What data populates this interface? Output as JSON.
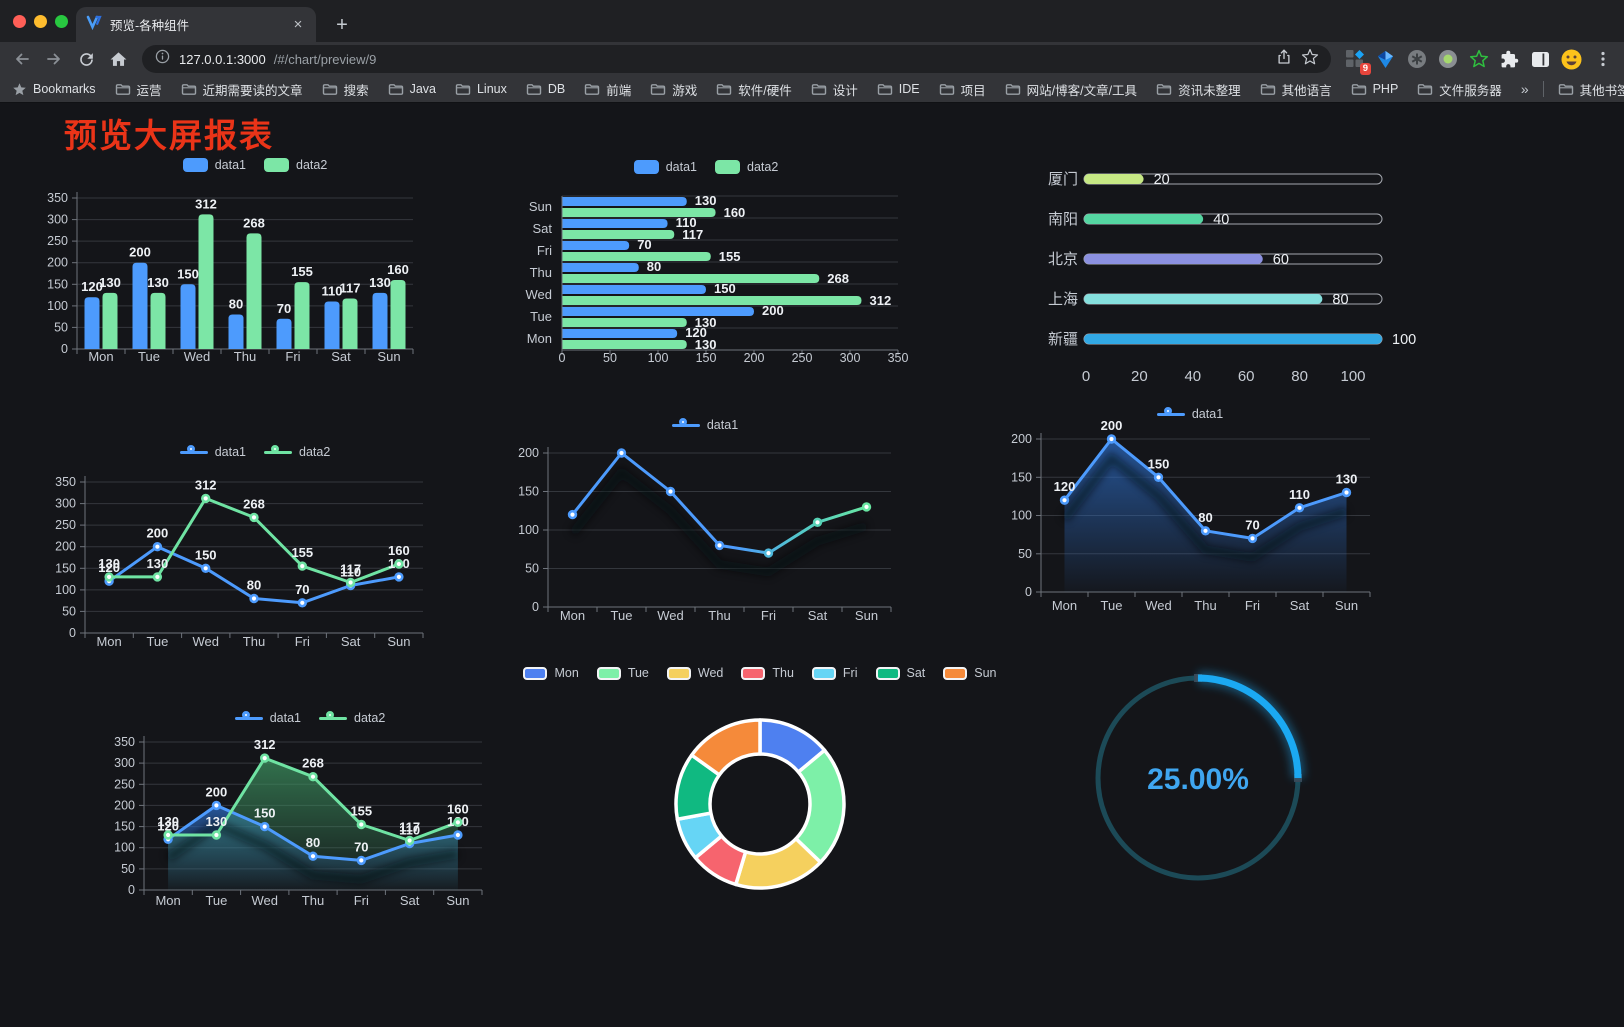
{
  "browser": {
    "tab": {
      "title": "预览-各种组件",
      "close": "×"
    },
    "new_tab": "+",
    "url": {
      "host": "127.0.0.1:3000",
      "path": "/#/chart/preview/9"
    },
    "extension_badge": "9",
    "bookmarks_bar": {
      "root_label": "Bookmarks",
      "folders": [
        "运营",
        "近期需要读的文章",
        "搜索",
        "Java",
        "Linux",
        "DB",
        "前端",
        "游戏",
        "软件/硬件",
        "设计",
        "IDE",
        "项目",
        "网站/博客/文章/工具",
        "资讯未整理",
        "其他语言",
        "PHP",
        "文件服务器"
      ],
      "overflow": "»",
      "other": "其他书签"
    }
  },
  "page": {
    "title": "预览大屏报表",
    "title_color": "#ea3418",
    "background": "#141519"
  },
  "chart_data": [
    {
      "id": "c1",
      "type": "bar",
      "title": "",
      "categories": [
        "Mon",
        "Tue",
        "Wed",
        "Thu",
        "Fri",
        "Sat",
        "Sun"
      ],
      "series": [
        {
          "name": "data1",
          "color": "#4d9bfd",
          "values": [
            120,
            200,
            150,
            80,
            70,
            110,
            130
          ]
        },
        {
          "name": "data2",
          "color": "#7ce6a6",
          "values": [
            130,
            130,
            312,
            268,
            155,
            117,
            160
          ]
        }
      ],
      "ylim": [
        0,
        350
      ],
      "ytick_step": 50,
      "value_labels": true,
      "legend_position": "top",
      "grid": true
    },
    {
      "id": "c2",
      "type": "bar",
      "orientation": "horizontal",
      "categories": [
        "Mon",
        "Tue",
        "Wed",
        "Thu",
        "Fri",
        "Sat",
        "Sun"
      ],
      "display_order_top_to_bottom": [
        "Sun",
        "Sat",
        "Fri",
        "Thu",
        "Wed",
        "Tue",
        "Mon"
      ],
      "series": [
        {
          "name": "data1",
          "color": "#4d9bfd",
          "values": [
            120,
            200,
            150,
            80,
            70,
            110,
            130
          ]
        },
        {
          "name": "data2",
          "color": "#7ce6a6",
          "values": [
            130,
            130,
            312,
            268,
            155,
            117,
            160
          ]
        }
      ],
      "xlim": [
        0,
        350
      ],
      "xtick_step": 50,
      "value_labels": true,
      "legend_position": "top",
      "grid": true
    },
    {
      "id": "c3",
      "type": "bar",
      "subtype": "progress",
      "rows": [
        {
          "label": "厦门",
          "value": 20,
          "color": "#c6e884"
        },
        {
          "label": "南阳",
          "value": 40,
          "color": "#55d6a2"
        },
        {
          "label": "北京",
          "value": 60,
          "color": "#8b90e0"
        },
        {
          "label": "上海",
          "value": 80,
          "color": "#85dfdd"
        },
        {
          "label": "新疆",
          "value": 100,
          "color": "#32a8e4"
        }
      ],
      "xlim": [
        0,
        100
      ],
      "xticks": [
        0,
        20,
        40,
        60,
        80,
        100
      ]
    },
    {
      "id": "c4",
      "type": "line",
      "categories": [
        "Mon",
        "Tue",
        "Wed",
        "Thu",
        "Fri",
        "Sat",
        "Sun"
      ],
      "series": [
        {
          "name": "data1",
          "color": "#4d9bfd",
          "values": [
            120,
            200,
            150,
            80,
            70,
            110,
            130
          ]
        },
        {
          "name": "data2",
          "color": "#6fe3a3",
          "values": [
            130,
            130,
            312,
            268,
            155,
            117,
            160
          ]
        }
      ],
      "ylim": [
        0,
        350
      ],
      "ytick_step": 50,
      "value_labels": true,
      "legend_position": "top",
      "grid": true
    },
    {
      "id": "c5",
      "type": "line",
      "categories": [
        "Mon",
        "Tue",
        "Wed",
        "Thu",
        "Fri",
        "Sat",
        "Sun"
      ],
      "series": [
        {
          "name": "data1",
          "color": "#4d9bfd",
          "values": [
            120,
            200,
            150,
            80,
            70,
            110,
            130
          ]
        }
      ],
      "line_gradient": [
        "#4d9bfd",
        "#68e6a2"
      ],
      "marker_colors": [
        "#4d9bfd",
        "#4d9bfd",
        "#4d9bfd",
        "#4d9bfd",
        "#4fb9dc",
        "#57d2b5",
        "#68e6a2"
      ],
      "ylim": [
        0,
        200
      ],
      "ytick_step": 50,
      "value_labels": false,
      "legend_position": "top",
      "grid": true
    },
    {
      "id": "c6",
      "type": "area",
      "categories": [
        "Mon",
        "Tue",
        "Wed",
        "Thu",
        "Fri",
        "Sat",
        "Sun"
      ],
      "series": [
        {
          "name": "data1",
          "color": "#4d9bfd",
          "area": true,
          "area_color": "#2d6ec8",
          "values": [
            120,
            200,
            150,
            80,
            70,
            110,
            130
          ]
        }
      ],
      "ylim": [
        0,
        200
      ],
      "ytick_step": 50,
      "value_labels": true,
      "legend_position": "top",
      "grid": true
    },
    {
      "id": "c7",
      "type": "area",
      "categories": [
        "Mon",
        "Tue",
        "Wed",
        "Thu",
        "Fri",
        "Sat",
        "Sun"
      ],
      "series": [
        {
          "name": "data1",
          "color": "#4d9bfd",
          "area": true,
          "area_color": "#2d6ec8",
          "values": [
            120,
            200,
            150,
            80,
            70,
            110,
            130
          ]
        },
        {
          "name": "data2",
          "color": "#6fe3a3",
          "area": true,
          "area_color": "#3e9662",
          "values": [
            130,
            130,
            312,
            268,
            155,
            117,
            160
          ]
        }
      ],
      "ylim": [
        0,
        350
      ],
      "ytick_step": 50,
      "value_labels": true,
      "legend_position": "top",
      "grid": true
    },
    {
      "id": "c8",
      "type": "pie",
      "subtype": "doughnut",
      "labels": [
        "Mon",
        "Tue",
        "Wed",
        "Thu",
        "Fri",
        "Sat",
        "Sun"
      ],
      "values": [
        120,
        200,
        150,
        80,
        70,
        110,
        130
      ],
      "colors": [
        "#4e80f0",
        "#7df0a8",
        "#f5d05e",
        "#f6646e",
        "#66d5f5",
        "#10b981",
        "#f58a3a"
      ],
      "border_color": "#ffffff",
      "legend_position": "top"
    },
    {
      "id": "c9",
      "type": "gauge",
      "percent": 25,
      "display": "25.00%",
      "color": "#1ba9f2",
      "track_color": "#1c4a57",
      "text_color": "#3fa6f0"
    }
  ]
}
